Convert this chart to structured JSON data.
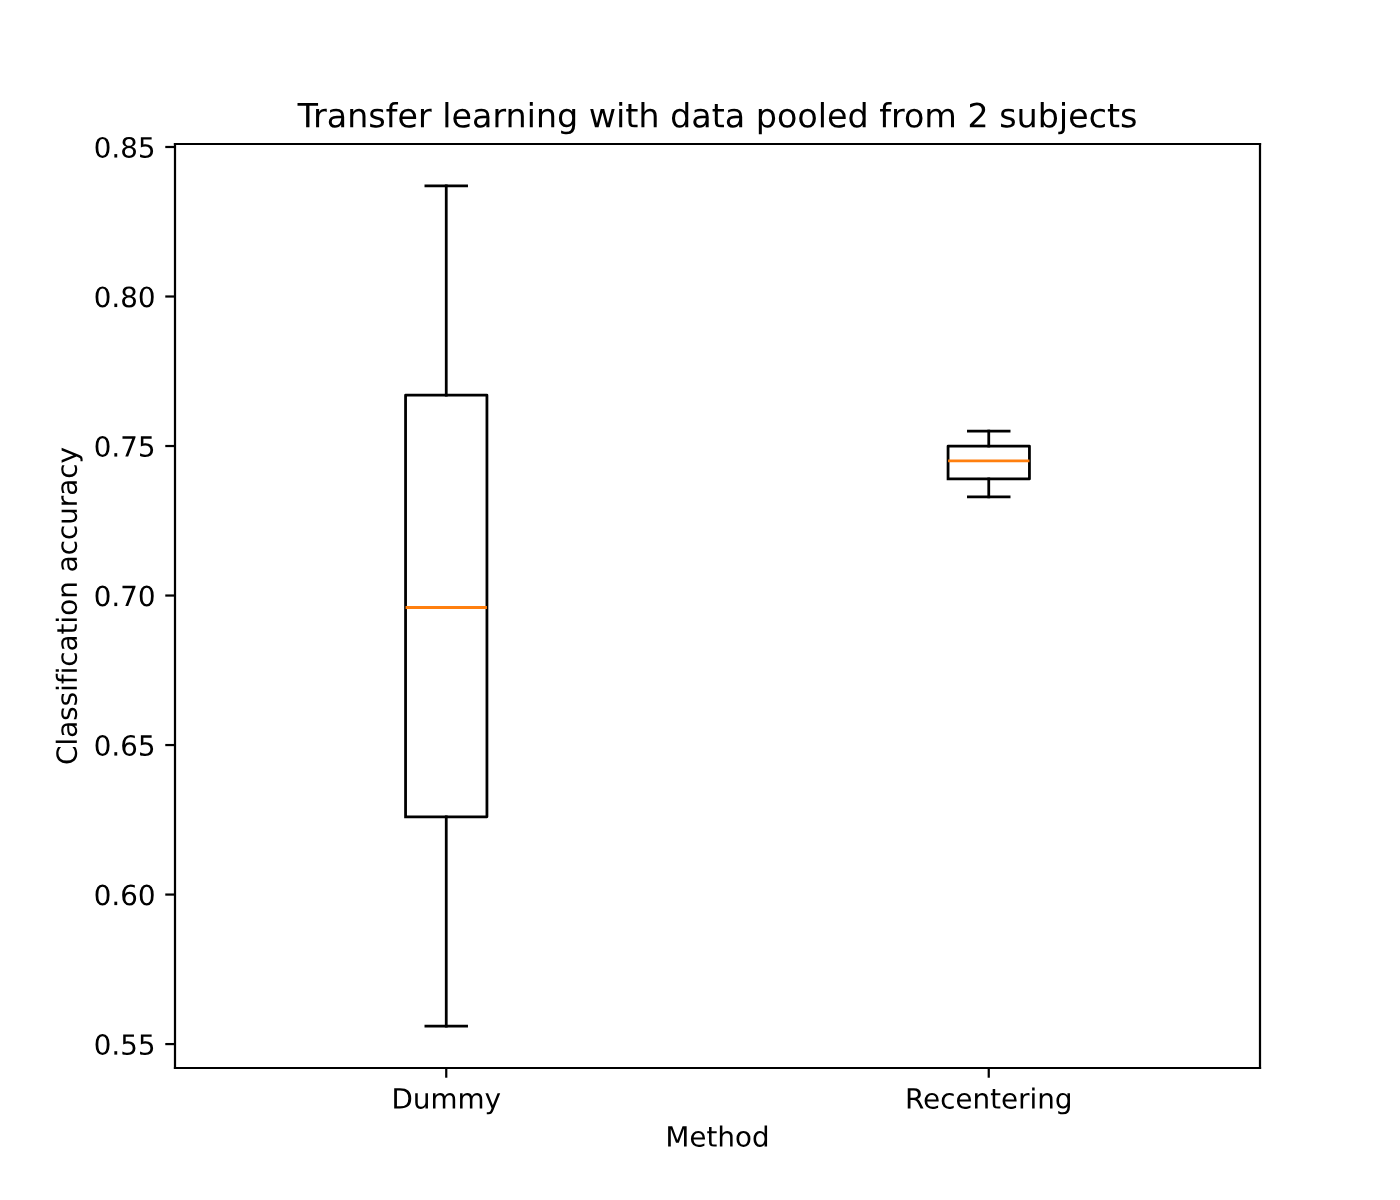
{
  "chart_data": {
    "type": "box",
    "title": "Transfer learning with data pooled from 2 subjects",
    "xlabel": "Method",
    "ylabel": "Classification accuracy",
    "categories": [
      "Dummy",
      "Recentering"
    ],
    "boxes": [
      {
        "low": 0.556,
        "q1": 0.626,
        "median": 0.696,
        "q3": 0.767,
        "high": 0.837
      },
      {
        "low": 0.733,
        "q1": 0.739,
        "median": 0.745,
        "q3": 0.75,
        "high": 0.755
      }
    ],
    "color": "#000000",
    "ylim": [
      0.542,
      0.851
    ],
    "yticks": [
      0.55,
      {
        "value": 0.6,
        "label": "0.60"
      },
      0.65,
      {
        "value": 0.7,
        "label": "0.70"
      },
      0.75,
      {
        "value": 0.8,
        "label": "0.80"
      },
      0.85
    ],
    "grid": false
  }
}
